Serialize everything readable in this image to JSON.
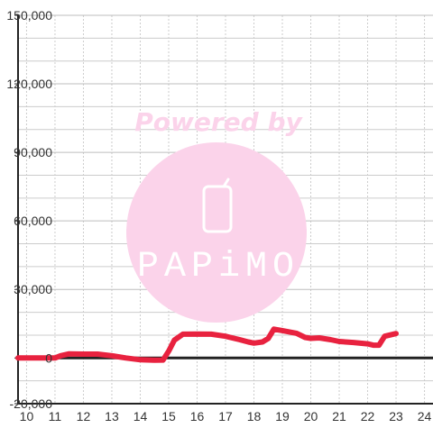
{
  "watermark": {
    "top_text": "Powered by",
    "brand_text": "PAPiMO",
    "color": "#fbd3ea",
    "icon": "phone-icon"
  },
  "chart_data": {
    "type": "line",
    "title": "",
    "xlabel": "",
    "ylabel": "",
    "xlim": [
      9.7,
      24.3
    ],
    "ylim": [
      -20000,
      150000
    ],
    "x_ticks": [
      10,
      11,
      12,
      13,
      14,
      15,
      16,
      17,
      18,
      19,
      20,
      21,
      22,
      23,
      24
    ],
    "x_tick_labels": [
      "10",
      "11",
      "12",
      "13",
      "14",
      "15",
      "16",
      "17",
      "18",
      "19",
      "20",
      "21",
      "22",
      "23",
      "24"
    ],
    "y_ticks": [
      -20000,
      0,
      30000,
      60000,
      90000,
      120000,
      150000
    ],
    "y_tick_labels": [
      "-20,000",
      "0",
      "30,000",
      "60,000",
      "90,000",
      "120,000",
      "150,000"
    ],
    "grid": true,
    "colors": {
      "line": "#e8223f",
      "axis": "#222222",
      "grid_major": "#bdbdbd",
      "grid_minor": "#cccccc"
    },
    "series": [
      {
        "values_x": [
          9.7,
          10.5,
          11.0,
          11.2,
          11.5,
          12.0,
          12.5,
          13.0,
          13.5,
          14.0,
          14.5,
          14.8,
          15.0,
          15.2,
          15.5,
          16.0,
          16.5,
          17.0,
          17.5,
          17.8,
          18.0,
          18.3,
          18.5,
          18.7,
          19.0,
          19.5,
          19.8,
          20.0,
          20.3,
          20.7,
          21.0,
          21.5,
          22.0,
          22.2,
          22.4,
          22.6,
          23.0
        ],
        "values_y": [
          0,
          0,
          0,
          1000,
          1800,
          1700,
          1700,
          1000,
          0,
          -800,
          -1000,
          -900,
          3000,
          7800,
          10400,
          10500,
          10400,
          9500,
          8000,
          7000,
          6500,
          7000,
          8500,
          12600,
          12000,
          10800,
          9000,
          8600,
          8800,
          8000,
          7200,
          6800,
          6200,
          5600,
          5600,
          9500,
          10700
        ]
      }
    ]
  }
}
